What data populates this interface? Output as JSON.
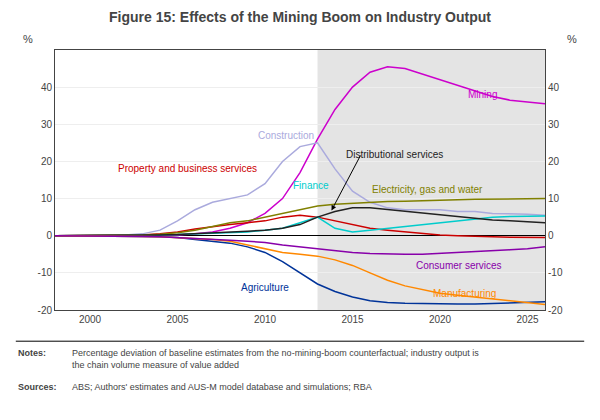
{
  "chart_data": {
    "type": "line",
    "title": "Figure 15: Effects of the Mining Boom on Industry Output",
    "ylabel": "%",
    "y2label": "%",
    "xlim": [
      1998,
      2026
    ],
    "xticks": [
      2000,
      2005,
      2010,
      2015,
      2020,
      2025
    ],
    "ylim": [
      -20,
      50
    ],
    "yticks": [
      -20,
      -10,
      0,
      10,
      20,
      30,
      40
    ],
    "y2lim": [
      -20,
      50
    ],
    "y2ticks": [
      -20,
      -10,
      0,
      10,
      20,
      30,
      40
    ],
    "grid": true,
    "shading": {
      "from": 2013,
      "to": 2026,
      "color": "#dddddd"
    },
    "x": [
      1998,
      1999,
      2000,
      2001,
      2002,
      2003,
      2004,
      2005,
      2006,
      2007,
      2008,
      2009,
      2010,
      2011,
      2012,
      2013,
      2014,
      2015,
      2016,
      2017,
      2018,
      2019,
      2020,
      2021,
      2022,
      2023,
      2024,
      2025,
      2026
    ],
    "series": [
      {
        "name": "Mining",
        "color": "#cc00cc",
        "values": [
          0,
          0,
          0,
          0,
          0,
          0,
          0.1,
          0.2,
          0.5,
          1.0,
          2.0,
          3.5,
          6.0,
          10.0,
          17.0,
          26.0,
          34.0,
          40.0,
          44.0,
          45.5,
          45.0,
          43.5,
          42.0,
          40.5,
          39.0,
          37.5,
          36.5,
          36.0,
          35.5
        ]
      },
      {
        "name": "Construction",
        "color": "#aaaadd",
        "values": [
          0,
          0,
          0,
          0,
          0.2,
          0.5,
          1.5,
          4.0,
          7.0,
          9.0,
          10.0,
          11.0,
          14.0,
          20.0,
          24.0,
          25.0,
          18.0,
          12.0,
          9.0,
          7.5,
          7.0,
          7.0,
          7.0,
          6.5,
          6.5,
          6.0,
          6.0,
          5.8,
          5.5
        ]
      },
      {
        "name": "Property and business services",
        "color": "#cc0000",
        "values": [
          0,
          0,
          0,
          0,
          0.1,
          0.2,
          0.5,
          1.0,
          1.8,
          2.5,
          3.0,
          3.5,
          4.0,
          5.0,
          5.5,
          5.0,
          4.0,
          3.0,
          2.0,
          1.5,
          1.0,
          0.5,
          0.2,
          0.0,
          -0.2,
          -0.3,
          -0.4,
          -0.5,
          -0.5
        ]
      },
      {
        "name": "Finance",
        "color": "#00cccc",
        "values": [
          0,
          0,
          0,
          0,
          0,
          0.1,
          0.2,
          0.3,
          0.5,
          0.8,
          1.0,
          1.0,
          1.5,
          2.0,
          3.5,
          5.0,
          2.0,
          1.0,
          1.5,
          2.0,
          2.5,
          3.0,
          3.5,
          4.0,
          4.5,
          5.0,
          5.2,
          5.3,
          5.3
        ]
      },
      {
        "name": "Electricity, gas and water",
        "color": "#808000",
        "values": [
          0,
          0,
          0,
          0,
          0.1,
          0.2,
          0.4,
          0.8,
          1.5,
          2.5,
          3.5,
          4.0,
          5.0,
          6.0,
          7.0,
          8.0,
          8.5,
          8.8,
          9.0,
          9.2,
          9.3,
          9.5,
          9.6,
          9.7,
          9.8,
          9.8,
          9.9,
          10.0,
          10.0
        ]
      },
      {
        "name": "Distributional services",
        "color": "#222222",
        "values": [
          0,
          0,
          0,
          0,
          0,
          0.1,
          0.2,
          0.3,
          0.5,
          0.8,
          1.0,
          1.2,
          1.5,
          2.0,
          3.0,
          5.0,
          6.5,
          7.5,
          7.5,
          7.0,
          6.5,
          6.0,
          5.5,
          5.0,
          4.5,
          4.2,
          4.0,
          3.8,
          3.5
        ]
      },
      {
        "name": "Agriculture",
        "color": "#003399",
        "values": [
          0,
          0,
          0,
          0,
          -0.1,
          -0.2,
          -0.3,
          -0.5,
          -1.0,
          -1.5,
          -2.0,
          -3.0,
          -4.5,
          -7.0,
          -10.0,
          -13.0,
          -15.0,
          -16.5,
          -17.5,
          -18.0,
          -18.2,
          -18.3,
          -18.4,
          -18.4,
          -18.4,
          -18.3,
          -18.2,
          -18.0,
          -17.8
        ]
      },
      {
        "name": "Manufacturing",
        "color": "#ff8800",
        "values": [
          0,
          0,
          0,
          0,
          -0.1,
          -0.2,
          -0.3,
          -0.5,
          -0.8,
          -1.0,
          -1.5,
          -2.5,
          -3.5,
          -4.5,
          -5.0,
          -5.5,
          -6.5,
          -8.0,
          -10.0,
          -12.0,
          -13.5,
          -14.5,
          -15.5,
          -16.0,
          -16.5,
          -17.0,
          -17.5,
          -18.0,
          -18.5
        ]
      },
      {
        "name": "Consumer services",
        "color": "#8800aa",
        "values": [
          0,
          0,
          0,
          0,
          -0.1,
          -0.2,
          -0.3,
          -0.5,
          -0.8,
          -1.0,
          -1.2,
          -1.5,
          -1.8,
          -2.5,
          -3.0,
          -3.5,
          -4.0,
          -4.5,
          -4.8,
          -5.0,
          -5.0,
          -5.0,
          -4.8,
          -4.5,
          -4.2,
          -4.0,
          -3.8,
          -3.5,
          -3.0
        ]
      }
    ],
    "annotations": [
      {
        "text": "Mining",
        "x": 2021.5,
        "y": 38,
        "color": "#cc00cc"
      },
      {
        "text": "Construction",
        "x": 2009.5,
        "y": 27,
        "color": "#aaaadd"
      },
      {
        "text": "Property and business services",
        "x": 2001.5,
        "y": 18,
        "color": "#cc0000"
      },
      {
        "text": "Finance",
        "x": 2011.5,
        "y": 13.5,
        "color": "#00cccc"
      },
      {
        "text": "Electricity, gas and water",
        "x": 2016.0,
        "y": 12.5,
        "color": "#808000"
      },
      {
        "text": "Distributional services",
        "x": 2014.5,
        "y": 22,
        "color": "#222222",
        "arrow": {
          "x": 2013.8,
          "y": 6.8,
          "from_x": 2015.5,
          "from_y": 22
        }
      },
      {
        "text": "Agriculture",
        "x": 2008.5,
        "y": -14,
        "color": "#003399"
      },
      {
        "text": "Manufacturing",
        "x": 2019.5,
        "y": -15.5,
        "color": "#ff8800"
      },
      {
        "text": "Consumer services",
        "x": 2018.5,
        "y": -8,
        "color": "#8800aa"
      }
    ],
    "notes": {
      "label": "Notes:",
      "text": "Percentage deviation of baseline estimates from the no-mining-boom counterfactual; industry output is\nthe chain volume measure of value added"
    },
    "sources": {
      "label": "Sources:",
      "text": "ABS; Authors' estimates and AUS-M model database and simulations; RBA"
    }
  }
}
